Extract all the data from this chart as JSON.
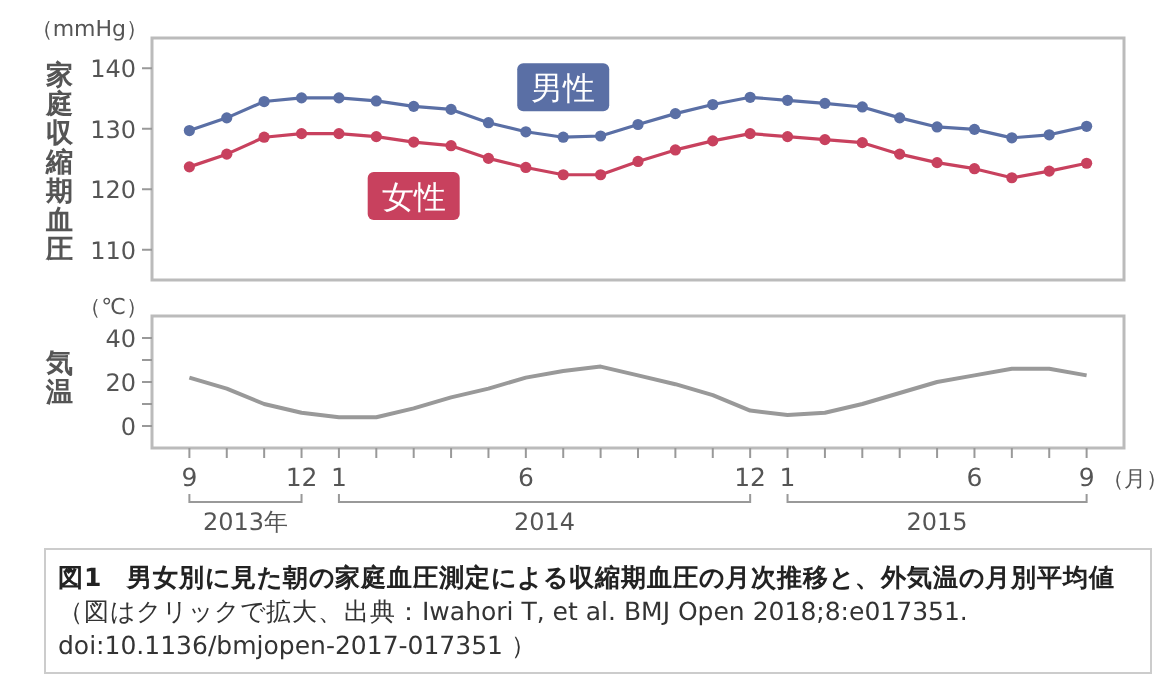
{
  "chart_data": [
    {
      "type": "line",
      "ylabel": "家庭収縮期血圧",
      "annotations": [
        "（mmHg）"
      ],
      "x": [
        "2013-09",
        "2013-10",
        "2013-11",
        "2013-12",
        "2014-01",
        "2014-02",
        "2014-03",
        "2014-04",
        "2014-05",
        "2014-06",
        "2014-07",
        "2014-08",
        "2014-09",
        "2014-10",
        "2014-11",
        "2014-12",
        "2015-01",
        "2015-02",
        "2015-03",
        "2015-04",
        "2015-05",
        "2015-06",
        "2015-07",
        "2015-08",
        "2015-09"
      ],
      "xlim": [
        "2013-08",
        "2015-10"
      ],
      "ylim": [
        105,
        145
      ],
      "yticks": [
        110,
        120,
        130,
        140
      ],
      "tick_labels": "y",
      "marker": "circle",
      "grid": false,
      "series": [
        {
          "name": "男性",
          "color": "#5a6fa5",
          "values": [
            129.7,
            131.8,
            134.5,
            135.1,
            135.1,
            134.6,
            133.7,
            133.2,
            131.0,
            129.5,
            128.6,
            128.8,
            130.7,
            132.5,
            134.0,
            135.2,
            134.7,
            134.2,
            133.6,
            131.8,
            130.3,
            129.9,
            128.5,
            129.0,
            130.4
          ]
        },
        {
          "name": "女性",
          "color": "#c8415e",
          "values": [
            123.7,
            125.8,
            128.6,
            129.2,
            129.2,
            128.7,
            127.8,
            127.2,
            125.1,
            123.6,
            122.4,
            122.4,
            124.6,
            126.5,
            128.0,
            129.2,
            128.7,
            128.2,
            127.7,
            125.8,
            124.4,
            123.4,
            121.9,
            123.0,
            124.3
          ]
        }
      ]
    },
    {
      "type": "line",
      "ylabel": "気温",
      "xlabel": "（月）",
      "annotations": [
        "（℃）",
        "2013年",
        "2014",
        "2015"
      ],
      "title": "図1　男女別に見た朝の家庭血圧測定による収縮期血圧の月次推移と、外気温の月別平均値",
      "subtitle": "（図はクリックで拡大、出典：Iwahori T, et al. BMJ Open 2018;8:e017351. doi:10.1136/bmjopen-2017-017351 ）",
      "x": [
        "2013-09",
        "2013-10",
        "2013-11",
        "2013-12",
        "2014-01",
        "2014-02",
        "2014-03",
        "2014-04",
        "2014-05",
        "2014-06",
        "2014-07",
        "2014-08",
        "2014-09",
        "2014-10",
        "2014-11",
        "2014-12",
        "2015-01",
        "2015-02",
        "2015-03",
        "2015-04",
        "2015-05",
        "2015-06",
        "2015-07",
        "2015-08",
        "2015-09"
      ],
      "xlim": [
        "2013-08",
        "2015-10"
      ],
      "ylim": [
        -10,
        50
      ],
      "yticks": [
        0,
        {
          "value": 10,
          "label": null
        },
        20,
        {
          "value": 30,
          "label": null
        },
        40
      ],
      "xticks": [
        {
          "value": "2013-09",
          "label": "9"
        },
        {
          "value": "2013-10",
          "label": null
        },
        {
          "value": "2013-11",
          "label": null
        },
        {
          "value": "2013-12",
          "label": "12"
        },
        {
          "value": "2014-01",
          "label": "1"
        },
        {
          "value": "2014-02",
          "label": null
        },
        {
          "value": "2014-03",
          "label": null
        },
        {
          "value": "2014-04",
          "label": null
        },
        {
          "value": "2014-05",
          "label": null
        },
        {
          "value": "2014-06",
          "label": "6"
        },
        {
          "value": "2014-07",
          "label": null
        },
        {
          "value": "2014-08",
          "label": null
        },
        {
          "value": "2014-09",
          "label": null
        },
        {
          "value": "2014-10",
          "label": null
        },
        {
          "value": "2014-11",
          "label": null
        },
        {
          "value": "2014-12",
          "label": "12"
        },
        {
          "value": "2015-01",
          "label": "1"
        },
        {
          "value": "2015-02",
          "label": null
        },
        {
          "value": "2015-03",
          "label": null
        },
        {
          "value": "2015-04",
          "label": null
        },
        {
          "value": "2015-05",
          "label": null
        },
        {
          "value": "2015-06",
          "label": "6"
        },
        {
          "value": "2015-07",
          "label": null
        },
        {
          "value": "2015-08",
          "label": null
        },
        {
          "value": "2015-09",
          "label": "9"
        }
      ],
      "marker": "none",
      "grid": false,
      "series": [
        {
          "color": "#999999",
          "values": [
            22,
            17,
            10,
            6,
            4,
            4,
            8,
            13,
            17,
            22,
            25,
            27,
            23,
            19,
            14,
            7,
            5,
            6,
            10,
            15,
            20,
            23,
            26,
            26,
            23
          ]
        }
      ]
    }
  ]
}
